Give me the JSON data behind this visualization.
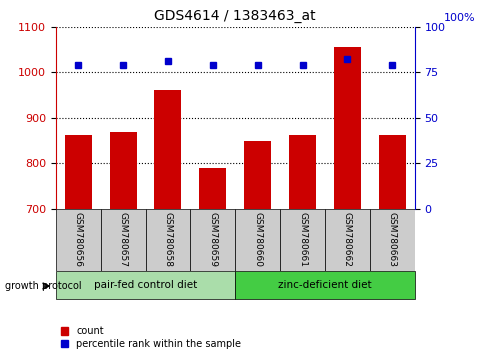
{
  "title": "GDS4614 / 1383463_at",
  "samples": [
    "GSM780656",
    "GSM780657",
    "GSM780658",
    "GSM780659",
    "GSM780660",
    "GSM780661",
    "GSM780662",
    "GSM780663"
  ],
  "bar_values": [
    862,
    868,
    960,
    790,
    848,
    862,
    1055,
    862
  ],
  "percentile_values": [
    79,
    79,
    81,
    79,
    79,
    79,
    82,
    79
  ],
  "ylim_left": [
    700,
    1100
  ],
  "ylim_right": [
    0,
    100
  ],
  "yticks_left": [
    700,
    800,
    900,
    1000,
    1100
  ],
  "yticks_right": [
    0,
    25,
    50,
    75,
    100
  ],
  "bar_color": "#cc0000",
  "dot_color": "#0000cc",
  "bar_width": 0.6,
  "group1_label": "pair-fed control diet",
  "group2_label": "zinc-deficient diet",
  "group_label_prefix": "growth protocol",
  "group1_color": "#aaddaa",
  "group2_color": "#44cc44",
  "group1_indices": [
    0,
    1,
    2,
    3
  ],
  "group2_indices": [
    4,
    5,
    6,
    7
  ],
  "legend_count_label": "count",
  "legend_percentile_label": "percentile rank within the sample",
  "axis_color_left": "#cc0000",
  "axis_color_right": "#0000cc",
  "tick_area_color": "#cccccc",
  "right_top_label": "100%"
}
